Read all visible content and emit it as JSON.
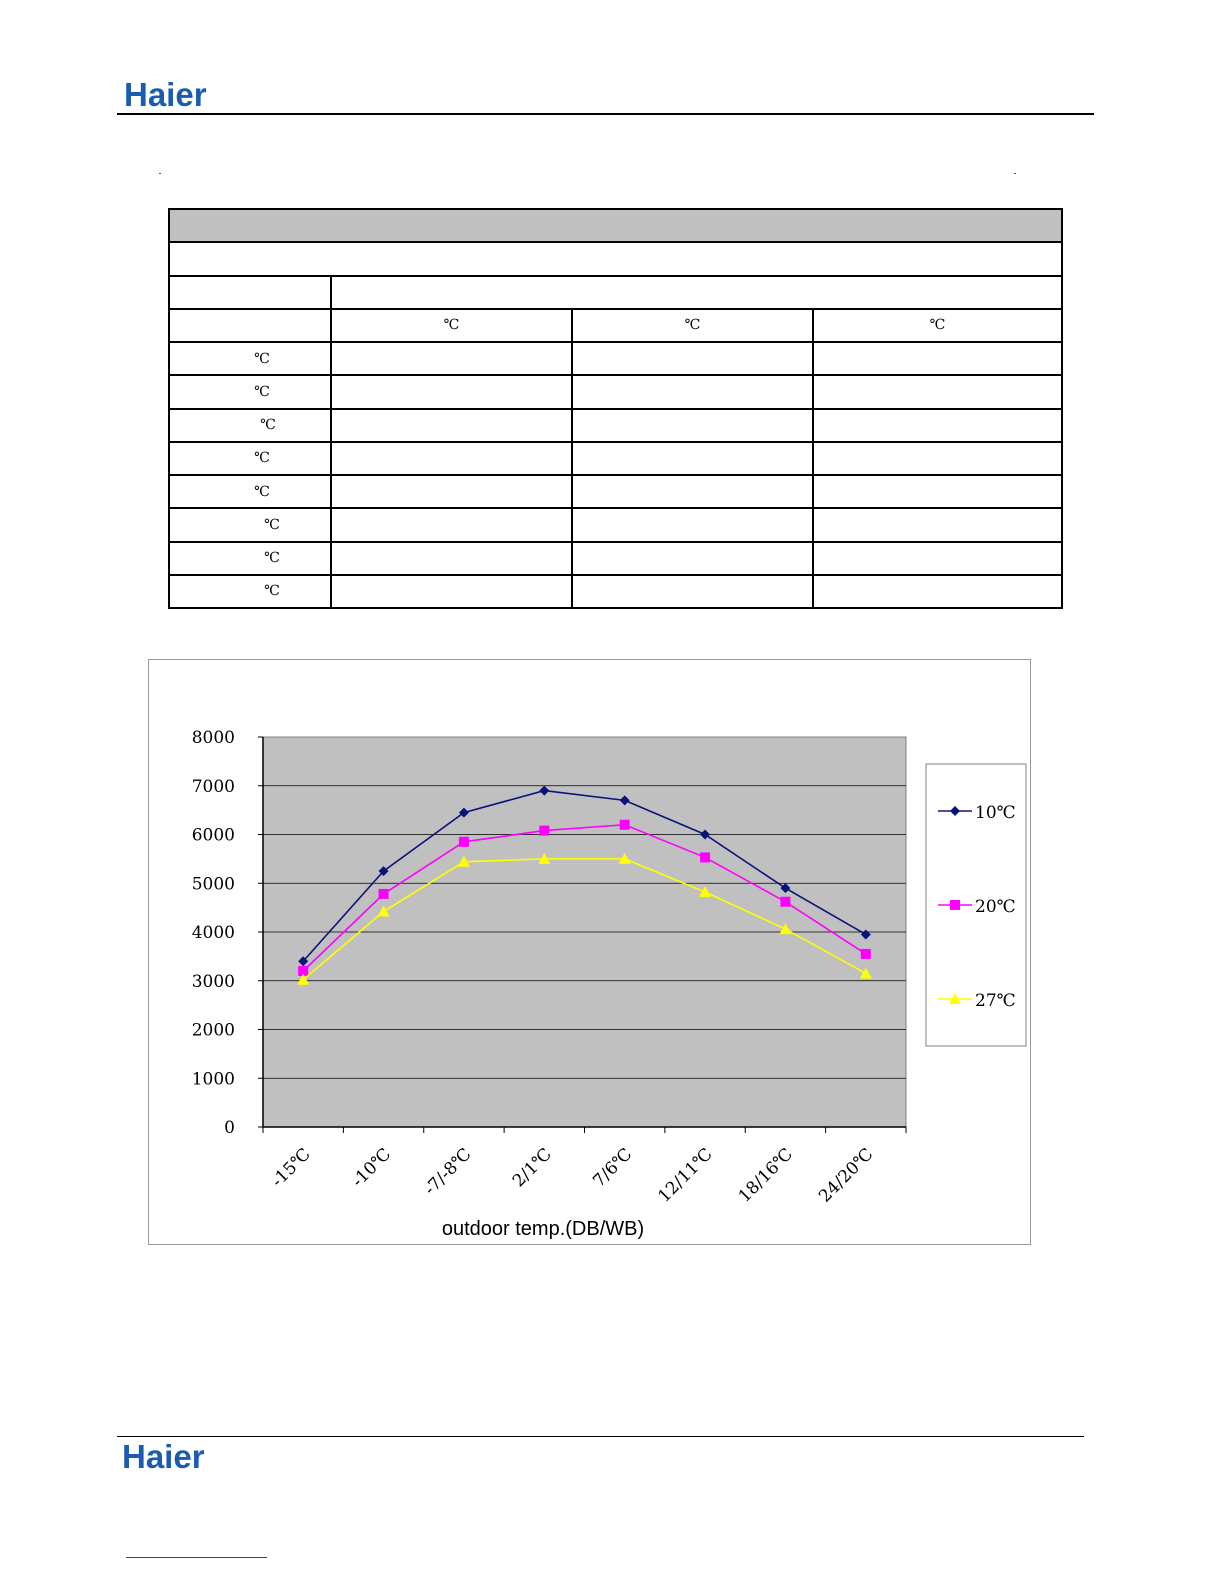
{
  "header": {
    "logo_text": "Haier"
  },
  "footer": {
    "logo_text": "Haier"
  },
  "table": {
    "unit": "℃",
    "header_units": [
      "℃",
      "℃",
      "℃"
    ],
    "row_units": [
      "℃",
      "℃",
      "℃",
      "℃",
      "℃",
      "℃",
      "℃",
      "℃"
    ]
  },
  "chart_data": {
    "type": "line",
    "categories": [
      "-15℃",
      "-10℃",
      "-7/-8℃",
      "2/1℃",
      "7/6℃",
      "12/11℃",
      "18/16℃",
      "24/20℃"
    ],
    "series": [
      {
        "name": "10℃",
        "color": "#0a1478",
        "marker": "diamond",
        "values": [
          3400,
          5250,
          6450,
          6900,
          6700,
          6000,
          4900,
          3950
        ]
      },
      {
        "name": "20℃",
        "color": "#ff00ff",
        "marker": "square",
        "values": [
          3200,
          4780,
          5850,
          6080,
          6200,
          5530,
          4620,
          3550
        ]
      },
      {
        "name": "27℃",
        "color": "#ffff00",
        "marker": "triangle",
        "values": [
          3020,
          4420,
          5440,
          5500,
          5500,
          4820,
          4060,
          3150
        ]
      }
    ],
    "ylim": [
      0,
      8000
    ],
    "yticks": [
      "0",
      "1000",
      "2000",
      "3000",
      "4000",
      "5000",
      "6000",
      "7000",
      "8000"
    ],
    "xlabel": "outdoor temp.(DB/WB)",
    "ylabel": "",
    "grid": true,
    "plot_background": "#c0c0c0",
    "legend": "right"
  }
}
